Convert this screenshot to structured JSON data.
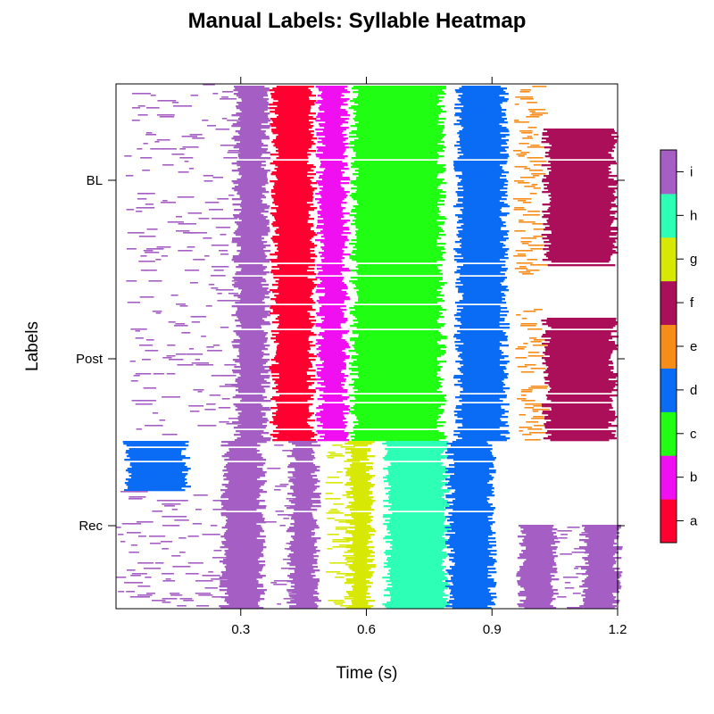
{
  "chart_data": {
    "type": "heatmap",
    "title": "Manual Labels: Syllable Heatmap",
    "xlabel": "Time (s)",
    "ylabel": "Labels",
    "xlim": [
      0,
      1.2
    ],
    "xticks": [
      "0.3",
      "0.6",
      "0.9",
      "1.2"
    ],
    "ycategories": [
      "BL",
      "Post",
      "Rec"
    ],
    "legend": "right",
    "colorbar": {
      "levels": [
        "a",
        "b",
        "c",
        "d",
        "e",
        "f",
        "g",
        "h",
        "i"
      ],
      "colors": {
        "a": "#FF0030",
        "b": "#F00FF0",
        "c": "#20FF13",
        "d": "#0A6CF5",
        "e": "#F68D1B",
        "f": "#AB0F5A",
        "g": "#D8E805",
        "h": "#2DFFB6",
        "i": "#A55FC4"
      }
    },
    "groups": [
      {
        "name": "BL",
        "rows": 107,
        "syllables": [
          {
            "label": "i",
            "start": 0.02,
            "end": 0.28,
            "density": 0.25,
            "rows": [
              0,
              1
            ]
          },
          {
            "label": "i",
            "start": 0.29,
            "end": 0.36,
            "density": 1,
            "rows": [
              0,
              1
            ]
          },
          {
            "label": "a",
            "start": 0.38,
            "end": 0.47,
            "density": 1,
            "rows": [
              0,
              1
            ]
          },
          {
            "label": "b",
            "start": 0.49,
            "end": 0.55,
            "density": 1,
            "rows": [
              0,
              1
            ]
          },
          {
            "label": "c",
            "start": 0.57,
            "end": 0.78,
            "density": 1,
            "rows": [
              0,
              1
            ]
          },
          {
            "label": "d",
            "start": 0.82,
            "end": 0.93,
            "density": 1,
            "rows": [
              0,
              1
            ]
          },
          {
            "label": "e",
            "start": 0.95,
            "end": 1.0,
            "density": 0.75,
            "rows": [
              0,
              1
            ]
          },
          {
            "label": "f",
            "start": 1.03,
            "end": 1.19,
            "density": 1,
            "rows": [
              0.23,
              0.95
            ]
          }
        ]
      },
      {
        "name": "Post",
        "rows": 93,
        "syllables": [
          {
            "label": "i",
            "start": 0.02,
            "end": 0.28,
            "density": 0.25,
            "rows": [
              0,
              1
            ]
          },
          {
            "label": "i",
            "start": 0.29,
            "end": 0.36,
            "density": 1,
            "rows": [
              0,
              1
            ]
          },
          {
            "label": "a",
            "start": 0.38,
            "end": 0.47,
            "density": 1,
            "rows": [
              0,
              1
            ]
          },
          {
            "label": "b",
            "start": 0.49,
            "end": 0.55,
            "density": 1,
            "rows": [
              0,
              1
            ]
          },
          {
            "label": "c",
            "start": 0.57,
            "end": 0.78,
            "density": 1,
            "rows": [
              0,
              1
            ]
          },
          {
            "label": "d",
            "start": 0.82,
            "end": 0.93,
            "density": 1,
            "rows": [
              0,
              1
            ]
          },
          {
            "label": "e",
            "start": 0.95,
            "end": 1.0,
            "density": 0.6,
            "rows": [
              0.2,
              1
            ]
          },
          {
            "label": "f",
            "start": 1.03,
            "end": 1.19,
            "density": 1,
            "rows": [
              0.25,
              1
            ]
          }
        ]
      },
      {
        "name": "Rec",
        "rows": 94,
        "syllables": [
          {
            "label": "d",
            "start": 0.03,
            "end": 0.17,
            "density": 1,
            "rows": [
              0,
              0.29
            ]
          },
          {
            "label": "i",
            "start": 0.0,
            "end": 0.25,
            "density": 0.3,
            "rows": [
              0.29,
              1
            ]
          },
          {
            "label": "i",
            "start": 0.26,
            "end": 0.35,
            "density": 1,
            "rows": [
              0,
              1
            ]
          },
          {
            "label": "i",
            "start": 0.36,
            "end": 0.42,
            "density": 0.35,
            "rows": [
              0,
              1
            ]
          },
          {
            "label": "i",
            "start": 0.42,
            "end": 0.48,
            "density": 1,
            "rows": [
              0,
              1
            ]
          },
          {
            "label": "g",
            "start": 0.5,
            "end": 0.55,
            "density": 0.5,
            "rows": [
              0,
              1
            ]
          },
          {
            "label": "g",
            "start": 0.56,
            "end": 0.61,
            "density": 1,
            "rows": [
              0,
              1
            ]
          },
          {
            "label": "h",
            "start": 0.65,
            "end": 0.79,
            "density": 1,
            "rows": [
              0,
              1
            ]
          },
          {
            "label": "d",
            "start": 0.8,
            "end": 0.9,
            "density": 1,
            "rows": [
              0,
              1
            ]
          },
          {
            "label": "i",
            "start": 0.97,
            "end": 1.05,
            "density": 1,
            "rows": [
              0.5,
              1
            ]
          },
          {
            "label": "i",
            "start": 1.05,
            "end": 1.12,
            "density": 0.3,
            "rows": [
              0.5,
              1
            ]
          },
          {
            "label": "i",
            "start": 1.12,
            "end": 1.2,
            "density": 1,
            "rows": [
              0.5,
              1
            ]
          }
        ]
      }
    ]
  }
}
